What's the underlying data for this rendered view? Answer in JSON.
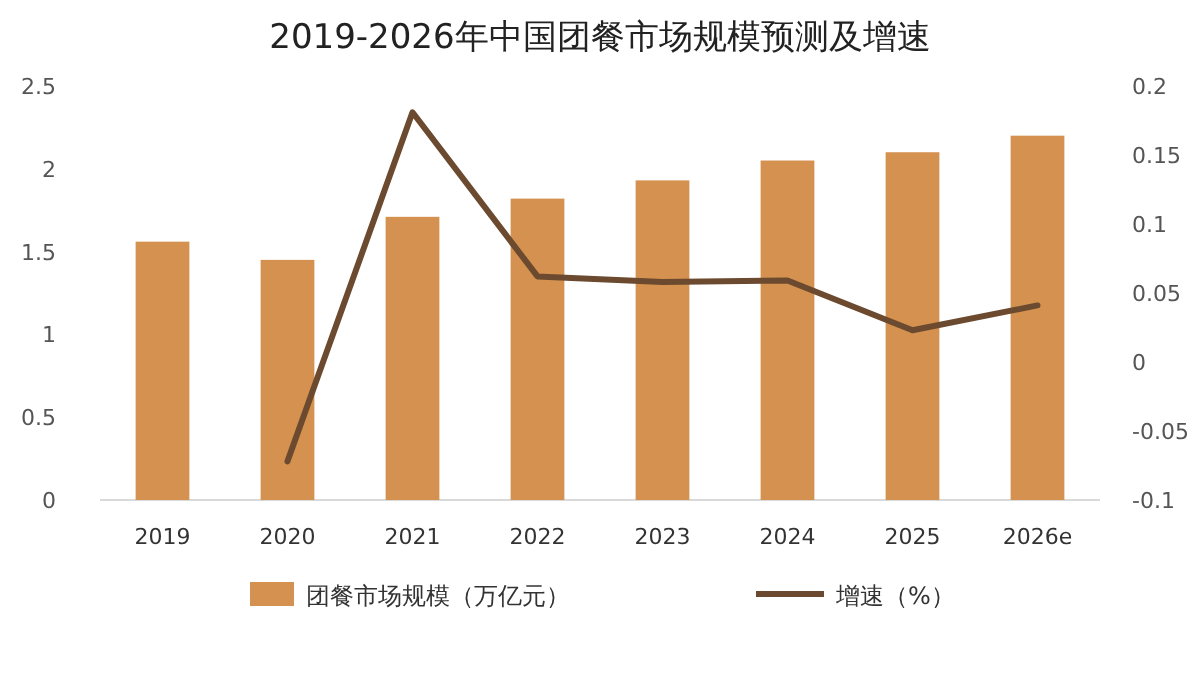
{
  "chart_data": {
    "type": "bar",
    "title": "2019-2026年中国团餐市场规模预测及增速",
    "categories": [
      "2019",
      "2020",
      "2021",
      "2022",
      "2023",
      "2024",
      "2025",
      "2026e"
    ],
    "series": [
      {
        "name": "团餐市场规模（万亿元）",
        "color": "#d4914f",
        "values": [
          1.56,
          1.45,
          1.71,
          1.82,
          1.93,
          2.05,
          2.1,
          2.2
        ]
      },
      {
        "name": "增速（%）",
        "type": "line",
        "axis": "y2",
        "color": "#6b4a2f",
        "values": [
          null,
          -0.072,
          0.181,
          0.062,
          0.058,
          0.059,
          0.023,
          0.041
        ]
      }
    ],
    "ylim": [
      0,
      2.5
    ],
    "yticks": [
      0,
      0.5,
      1,
      1.5,
      2,
      2.5
    ],
    "y2lim": [
      -0.1,
      0.2
    ],
    "y2ticks": [
      -0.1,
      -0.05,
      0,
      0.05,
      0.1,
      0.15,
      0.2
    ],
    "grid": false,
    "legend": "bottom",
    "marker": "none",
    "line_style": "solid"
  }
}
